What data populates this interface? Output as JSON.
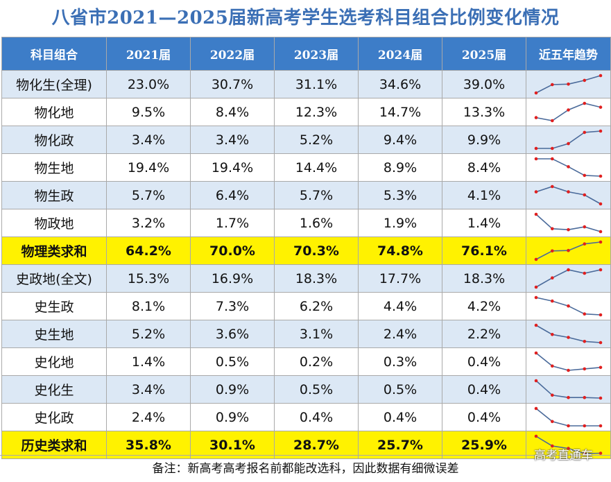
{
  "title": "八省市2021—2025届新高考学生选考科目组合比例变化情况",
  "header": {
    "combo": "科目组合",
    "years": [
      "2021届",
      "2022届",
      "2023届",
      "2024届",
      "2025届"
    ],
    "trend": "近五年趋势"
  },
  "chart_data": {
    "type": "table",
    "title": "八省市2021—2025届新高考学生选考科目组合比例变化情况",
    "columns": [
      "2021届",
      "2022届",
      "2023届",
      "2024届",
      "2025届"
    ],
    "rows": [
      {
        "label": "物化生(全理)",
        "cells": [
          "23.0%",
          "30.7%",
          "31.1%",
          "34.6%",
          "39.0%"
        ],
        "values": [
          23.0,
          30.7,
          31.1,
          34.6,
          39.0
        ],
        "style": "alt"
      },
      {
        "label": "物化地",
        "cells": [
          "9.5%",
          "8.4%",
          "12.3%",
          "14.7%",
          "13.3%"
        ],
        "values": [
          9.5,
          8.4,
          12.3,
          14.7,
          13.3
        ],
        "style": "plain"
      },
      {
        "label": "物化政",
        "cells": [
          "3.4%",
          "3.4%",
          "5.2%",
          "9.4%",
          "9.9%"
        ],
        "values": [
          3.4,
          3.4,
          5.2,
          9.4,
          9.9
        ],
        "style": "alt"
      },
      {
        "label": "物生地",
        "cells": [
          "19.4%",
          "19.4%",
          "14.4%",
          "8.9%",
          "8.4%"
        ],
        "values": [
          19.4,
          19.4,
          14.4,
          8.9,
          8.4
        ],
        "style": "plain"
      },
      {
        "label": "物生政",
        "cells": [
          "5.7%",
          "6.4%",
          "5.7%",
          "5.3%",
          "4.1%"
        ],
        "values": [
          5.7,
          6.4,
          5.7,
          5.3,
          4.1
        ],
        "style": "alt"
      },
      {
        "label": "物政地",
        "cells": [
          "3.2%",
          "1.7%",
          "1.6%",
          "1.9%",
          "1.4%"
        ],
        "values": [
          3.2,
          1.7,
          1.6,
          1.9,
          1.4
        ],
        "style": "plain"
      },
      {
        "label": "物理类求和",
        "cells": [
          "64.2%",
          "70.0%",
          "70.3%",
          "74.8%",
          "76.1%"
        ],
        "values": [
          64.2,
          70.0,
          70.3,
          74.8,
          76.1
        ],
        "style": "sum"
      },
      {
        "label": "史政地(全文)",
        "cells": [
          "15.3%",
          "16.9%",
          "18.3%",
          "17.7%",
          "18.3%"
        ],
        "values": [
          15.3,
          16.9,
          18.3,
          17.7,
          18.3
        ],
        "style": "alt"
      },
      {
        "label": "史生政",
        "cells": [
          "8.1%",
          "7.3%",
          "6.2%",
          "4.4%",
          "4.2%"
        ],
        "values": [
          8.1,
          7.3,
          6.2,
          4.4,
          4.2
        ],
        "style": "plain"
      },
      {
        "label": "史生地",
        "cells": [
          "5.2%",
          "3.6%",
          "3.1%",
          "2.4%",
          "2.2%"
        ],
        "values": [
          5.2,
          3.6,
          3.1,
          2.4,
          2.2
        ],
        "style": "alt"
      },
      {
        "label": "史化地",
        "cells": [
          "1.4%",
          "0.5%",
          "0.2%",
          "0.3%",
          "0.4%"
        ],
        "values": [
          1.4,
          0.5,
          0.2,
          0.3,
          0.4
        ],
        "style": "plain"
      },
      {
        "label": "史化生",
        "cells": [
          "3.4%",
          "0.9%",
          "0.5%",
          "0.5%",
          "0.4%"
        ],
        "values": [
          3.4,
          0.9,
          0.5,
          0.5,
          0.4
        ],
        "style": "alt"
      },
      {
        "label": "史化政",
        "cells": [
          "2.4%",
          "0.9%",
          "0.4%",
          "0.4%",
          "0.4%"
        ],
        "values": [
          2.4,
          0.9,
          0.4,
          0.4,
          0.4
        ],
        "style": "plain"
      },
      {
        "label": "历史类求和",
        "cells": [
          "35.8%",
          "30.1%",
          "28.7%",
          "25.7%",
          "25.9%"
        ],
        "values": [
          35.8,
          30.1,
          28.7,
          25.7,
          25.9
        ],
        "style": "sum"
      }
    ],
    "sparkline": {
      "line_color": "#4a6a9a",
      "marker_color": "#e02020"
    }
  },
  "colors": {
    "title": "#3b6fb5",
    "header_bg": "#3d7dc8",
    "alt_row": "#dce8f5",
    "sum_row": "#fff200"
  },
  "footer_note": "备注：新高考高考报名前都能改选科，因此数据有细微误差",
  "watermark": "高考直通车"
}
